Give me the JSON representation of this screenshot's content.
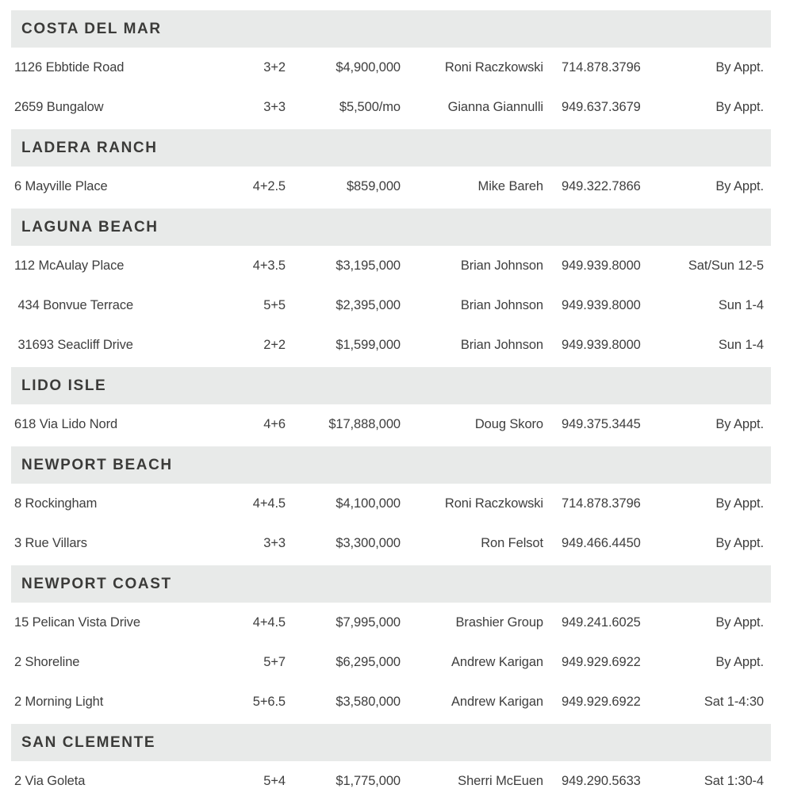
{
  "colors": {
    "page_bg": "#ffffff",
    "band_bg": "#e8eae9",
    "header_text": "#3b3b39",
    "body_text": "#3e3e3e"
  },
  "sections": [
    {
      "name": "COSTA DEL MAR",
      "listings": [
        {
          "address": "1126 Ebbtide Road",
          "beds_baths": "3+2",
          "price": "$4,900,000",
          "agent": "Roni Raczkowski",
          "phone": "714.878.3796",
          "open_time": "By Appt."
        },
        {
          "address": "2659 Bungalow",
          "beds_baths": "3+3",
          "price": "$5,500/mo",
          "agent": "Gianna Giannulli",
          "phone": "949.637.3679",
          "open_time": "By Appt."
        }
      ]
    },
    {
      "name": "LADERA RANCH",
      "listings": [
        {
          "address": "6 Mayville Place",
          "beds_baths": "4+2.5",
          "price": "$859,000",
          "agent": "Mike Bareh",
          "phone": "949.322.7866",
          "open_time": "By Appt."
        }
      ]
    },
    {
      "name": "LAGUNA BEACH",
      "listings": [
        {
          "address": "112 McAulay Place",
          "beds_baths": "4+3.5",
          "price": "$3,195,000",
          "agent": "Brian Johnson",
          "phone": "949.939.8000",
          "open_time": "Sat/Sun 12-5"
        },
        {
          "address": " 434 Bonvue Terrace",
          "beds_baths": "5+5",
          "price": "$2,395,000",
          "agent": "Brian Johnson",
          "phone": "949.939.8000",
          "open_time": "Sun 1-4"
        },
        {
          "address": " 31693 Seacliff Drive",
          "beds_baths": "2+2",
          "price": "$1,599,000",
          "agent": "Brian Johnson",
          "phone": "949.939.8000",
          "open_time": "Sun 1-4"
        }
      ]
    },
    {
      "name": "LIDO ISLE",
      "listings": [
        {
          "address": "618 Via Lido Nord",
          "beds_baths": "4+6",
          "price": "$17,888,000",
          "agent": "Doug Skoro",
          "phone": "949.375.3445",
          "open_time": "By Appt."
        }
      ]
    },
    {
      "name": "NEWPORT BEACH",
      "listings": [
        {
          "address": "8 Rockingham",
          "beds_baths": "4+4.5",
          "price": "$4,100,000",
          "agent": "Roni Raczkowski",
          "phone": "714.878.3796",
          "open_time": "By Appt."
        },
        {
          "address": "3 Rue Villars",
          "beds_baths": "3+3",
          "price": "$3,300,000",
          "agent": "Ron Felsot",
          "phone": "949.466.4450",
          "open_time": "By Appt."
        }
      ]
    },
    {
      "name": "NEWPORT COAST",
      "listings": [
        {
          "address": "15 Pelican Vista Drive",
          "beds_baths": "4+4.5",
          "price": "$7,995,000",
          "agent": "Brashier Group",
          "phone": "949.241.6025",
          "open_time": "By Appt."
        },
        {
          "address": "2 Shoreline",
          "beds_baths": "5+7",
          "price": "$6,295,000",
          "agent": "Andrew Karigan",
          "phone": "949.929.6922",
          "open_time": "By Appt."
        },
        {
          "address": "2 Morning Light",
          "beds_baths": "5+6.5",
          "price": "$3,580,000",
          "agent": "Andrew Karigan",
          "phone": "949.929.6922",
          "open_time": "Sat 1-4:30"
        }
      ]
    },
    {
      "name": "SAN CLEMENTE",
      "listings": [
        {
          "address": "2 Via Goleta",
          "beds_baths": "5+4",
          "price": "$1,775,000",
          "agent": "Sherri McEuen",
          "phone": "949.290.5633",
          "open_time": "Sat 1:30-4"
        }
      ]
    }
  ]
}
